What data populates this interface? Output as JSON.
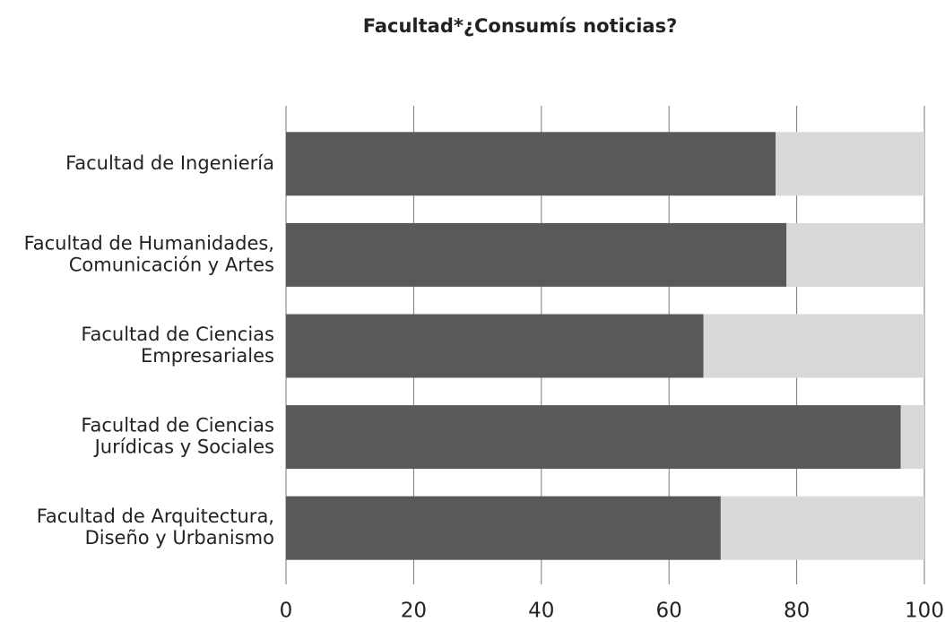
{
  "chart_data": {
    "type": "stacked_bar_horizontal",
    "title": "Facultad*¿Consumís noticias?",
    "categories": [
      [
        "Facultad de Ingeniería"
      ],
      [
        "Facultad de Humanidades,",
        "Comunicación y Artes"
      ],
      [
        "Facultad de Ciencias",
        "Empresariales"
      ],
      [
        "Facultad de Ciencias",
        "Jurídicas y Sociales"
      ],
      [
        "Facultad de Arquitectura,",
        "Diseño y Urbanismo"
      ]
    ],
    "series": [
      {
        "color": "#595959",
        "values": [
          76.7,
          78.4,
          65.4,
          96.3,
          68.1
        ]
      },
      {
        "color": "#d9d9d9",
        "values": [
          23.3,
          21.6,
          34.6,
          3.7,
          31.9
        ]
      }
    ],
    "xlim": [
      0,
      100
    ],
    "xticks": [
      0,
      20,
      40,
      60,
      80,
      100
    ],
    "grid": true
  }
}
